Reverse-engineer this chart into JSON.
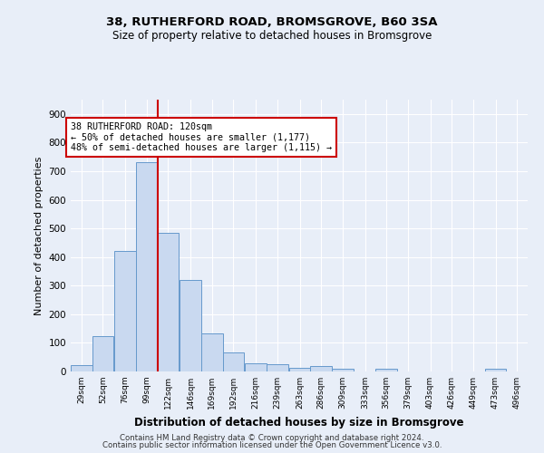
{
  "title1": "38, RUTHERFORD ROAD, BROMSGROVE, B60 3SA",
  "title2": "Size of property relative to detached houses in Bromsgrove",
  "xlabel": "Distribution of detached houses by size in Bromsgrove",
  "ylabel": "Number of detached properties",
  "bins": [
    29,
    52,
    76,
    99,
    122,
    146,
    169,
    192,
    216,
    239,
    263,
    286,
    309,
    333,
    356,
    379,
    403,
    426,
    449,
    473,
    496
  ],
  "values": [
    22,
    122,
    420,
    733,
    483,
    320,
    133,
    65,
    28,
    25,
    12,
    20,
    8,
    0,
    8,
    0,
    0,
    0,
    0,
    8,
    0
  ],
  "bar_color": "#c9d9f0",
  "bar_edge_color": "#6699cc",
  "vline_x": 122,
  "vline_color": "#cc0000",
  "annotation_line1": "38 RUTHERFORD ROAD: 120sqm",
  "annotation_line2": "← 50% of detached houses are smaller (1,177)",
  "annotation_line3": "48% of semi-detached houses are larger (1,115) →",
  "annotation_box_color": "white",
  "annotation_box_edge": "#cc0000",
  "bg_color": "#e8eef8",
  "grid_color": "#ffffff",
  "ylim": [
    0,
    950
  ],
  "yticks": [
    0,
    100,
    200,
    300,
    400,
    500,
    600,
    700,
    800,
    900
  ],
  "footer1": "Contains HM Land Registry data © Crown copyright and database right 2024.",
  "footer2": "Contains public sector information licensed under the Open Government Licence v3.0."
}
